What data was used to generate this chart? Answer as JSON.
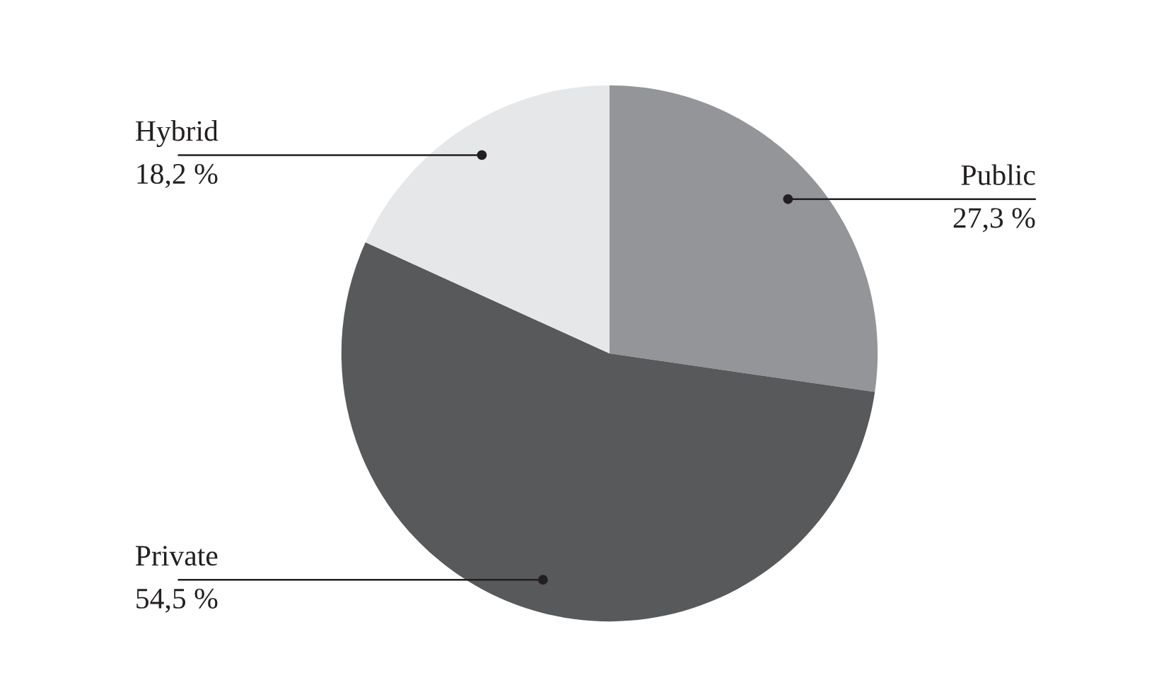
{
  "chart_data": {
    "type": "pie",
    "categories": [
      "Public",
      "Private",
      "Hybrid"
    ],
    "values": [
      27.3,
      54.5,
      18.2
    ],
    "value_labels": [
      "27,3 %",
      "54,5 %",
      "18,2 %"
    ],
    "colors": [
      "#939598",
      "#58595b",
      "#e6e7e8"
    ],
    "legend": false
  }
}
